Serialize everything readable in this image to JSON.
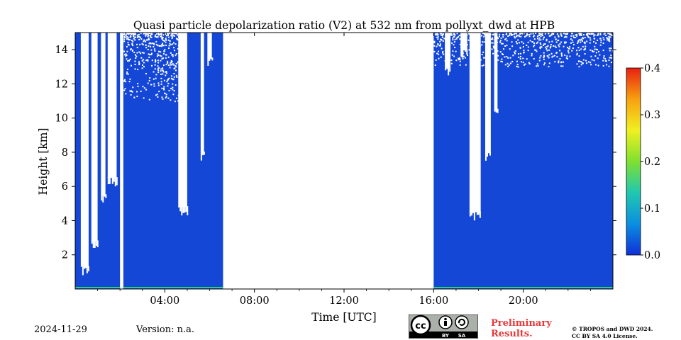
{
  "chart_data": {
    "type": "heatmap",
    "title": "Quasi particle depolarization ratio (V2) at 532 nm from pollyxt_dwd at HPB",
    "xlabel": "Time [UTC]",
    "ylabel": "Height [km]",
    "xlim_hours": [
      0,
      24
    ],
    "ylim_km": [
      0,
      15
    ],
    "x_ticks": [
      "04:00",
      "08:00",
      "12:00",
      "16:00",
      "20:00"
    ],
    "x_tick_hours": [
      4,
      8,
      12,
      16,
      20
    ],
    "y_ticks": [
      "2",
      "4",
      "6",
      "8",
      "10",
      "12",
      "14"
    ],
    "y_tick_values": [
      2,
      4,
      6,
      8,
      10,
      12,
      14
    ],
    "colorbar": {
      "range": [
        0.0,
        0.4
      ],
      "ticks": [
        "0.0",
        "0.1",
        "0.2",
        "0.3",
        "0.4"
      ],
      "tick_values": [
        0.0,
        0.1,
        0.2,
        0.3,
        0.4
      ],
      "colormap": [
        "#0f2fd8",
        "#0a8fe0",
        "#20c8b0",
        "#7fe030",
        "#f0f020",
        "#f8a010",
        "#e82010"
      ]
    },
    "field_color": "#1447d6",
    "surface_color": "#2fcf7a",
    "data_segments_hours": [
      [
        0.0,
        2.0
      ],
      [
        2.15,
        6.6
      ],
      [
        16.0,
        24.0
      ]
    ],
    "cloud_free_columns": [
      {
        "start": 0.25,
        "end": 0.6,
        "bottom_km": 1.3
      },
      {
        "start": 0.72,
        "end": 1.0,
        "bottom_km": 2.8
      },
      {
        "start": 1.15,
        "end": 1.35,
        "bottom_km": 5.5
      },
      {
        "start": 1.45,
        "end": 1.85,
        "bottom_km": 6.5
      },
      {
        "start": 4.6,
        "end": 5.0,
        "bottom_km": 4.8
      },
      {
        "start": 5.6,
        "end": 5.75,
        "bottom_km": 8.0
      },
      {
        "start": 5.9,
        "end": 6.1,
        "bottom_km": 13.5
      },
      {
        "start": 16.5,
        "end": 16.75,
        "bottom_km": 13.0
      },
      {
        "start": 17.2,
        "end": 17.5,
        "bottom_km": 14.0
      },
      {
        "start": 17.6,
        "end": 18.1,
        "bottom_km": 4.5
      },
      {
        "start": 18.3,
        "end": 18.55,
        "bottom_km": 8.0
      },
      {
        "start": 18.7,
        "end": 18.85,
        "bottom_km": 10.5
      }
    ],
    "sparse_tops": [
      {
        "start": 2.15,
        "end": 4.6,
        "from_km": 11.0
      },
      {
        "start": 16.0,
        "end": 24.0,
        "from_km": 13.0
      }
    ]
  },
  "footer": {
    "date": "2024-11-29",
    "version": "Version: n.a.",
    "preliminary_line1": "Preliminary",
    "preliminary_line2": "Results.",
    "copyright_line1": "© TROPOS and DWD 2024.",
    "copyright_line2": "CC BY SA 4.0 License.",
    "badge_by": "BY",
    "badge_sa": "SA"
  }
}
